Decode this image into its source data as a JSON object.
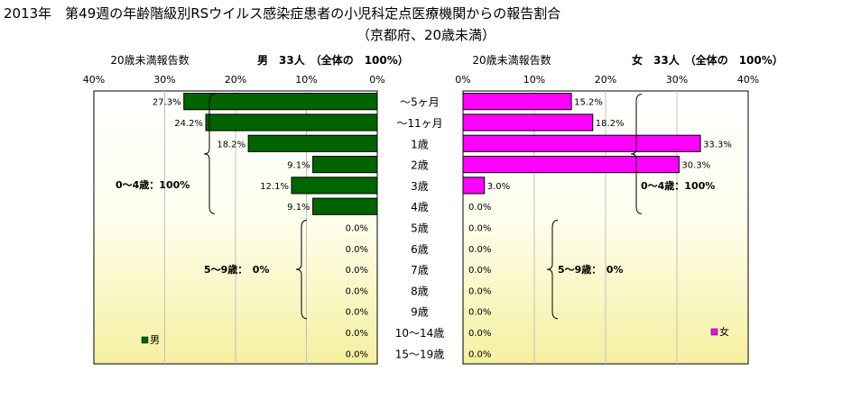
{
  "title": {
    "line1": "2013年　第49週の年齢階級別RSウイルス感染症患者の小児科定点医療機関からの報告割合",
    "line2": "（京都府、20歳未満）"
  },
  "colors": {
    "male": "#006400",
    "female": "#ff00ff",
    "plot_bg_top": "#ffffff",
    "plot_bg_bottom": "#f5f0a0",
    "grid": "#c0c0c0"
  },
  "chart_data": [
    {
      "type": "bar",
      "orientation": "horizontal-reversed",
      "subtitle": "20歳未満報告数",
      "header": "男　33人　（全体の　100%）",
      "legend": "男",
      "xlim": [
        0,
        40
      ],
      "ticks": [
        "40%",
        "30%",
        "20%",
        "10%",
        "0%"
      ],
      "tick_values": [
        40,
        30,
        20,
        10,
        0
      ],
      "categories": [
        "～5ヶ月",
        "～11ヶ月",
        "1歳",
        "2歳",
        "3歳",
        "4歳",
        "5歳",
        "6歳",
        "7歳",
        "8歳",
        "9歳",
        "10～14歳",
        "15～19歳"
      ],
      "values": [
        27.3,
        24.2,
        18.2,
        9.1,
        12.1,
        9.1,
        0,
        0,
        0,
        0,
        0,
        0,
        0
      ],
      "labels": [
        "27.3%",
        "24.2%",
        "18.2%",
        "9.1%",
        "12.1%",
        "9.1%",
        "0.0%",
        "0.0%",
        "0.0%",
        "0.0%",
        "0.0%",
        "0.0%",
        "0.0%"
      ],
      "annotations": [
        "0～4歳：100%",
        "5～9歳：　0%"
      ]
    },
    {
      "type": "bar",
      "orientation": "horizontal",
      "subtitle": "20歳未満報告数",
      "header": "女　33人　（全体の　100%）",
      "legend": "女",
      "xlim": [
        0,
        40
      ],
      "ticks": [
        "0%",
        "10%",
        "20%",
        "30%",
        "40%"
      ],
      "tick_values": [
        0,
        10,
        20,
        30,
        40
      ],
      "categories": [
        "～5ヶ月",
        "～11ヶ月",
        "1歳",
        "2歳",
        "3歳",
        "4歳",
        "5歳",
        "6歳",
        "7歳",
        "8歳",
        "9歳",
        "10～14歳",
        "15～19歳"
      ],
      "values": [
        15.2,
        18.2,
        33.3,
        30.3,
        3.0,
        0,
        0,
        0,
        0,
        0,
        0,
        0,
        0
      ],
      "labels": [
        "15.2%",
        "18.2%",
        "33.3%",
        "30.3%",
        "3.0%",
        "0.0%",
        "0.0%",
        "0.0%",
        "0.0%",
        "0.0%",
        "0.0%",
        "0.0%",
        "0.0%"
      ],
      "annotations": [
        "0～4歳：100%",
        "5～9歳：　0%"
      ]
    }
  ]
}
